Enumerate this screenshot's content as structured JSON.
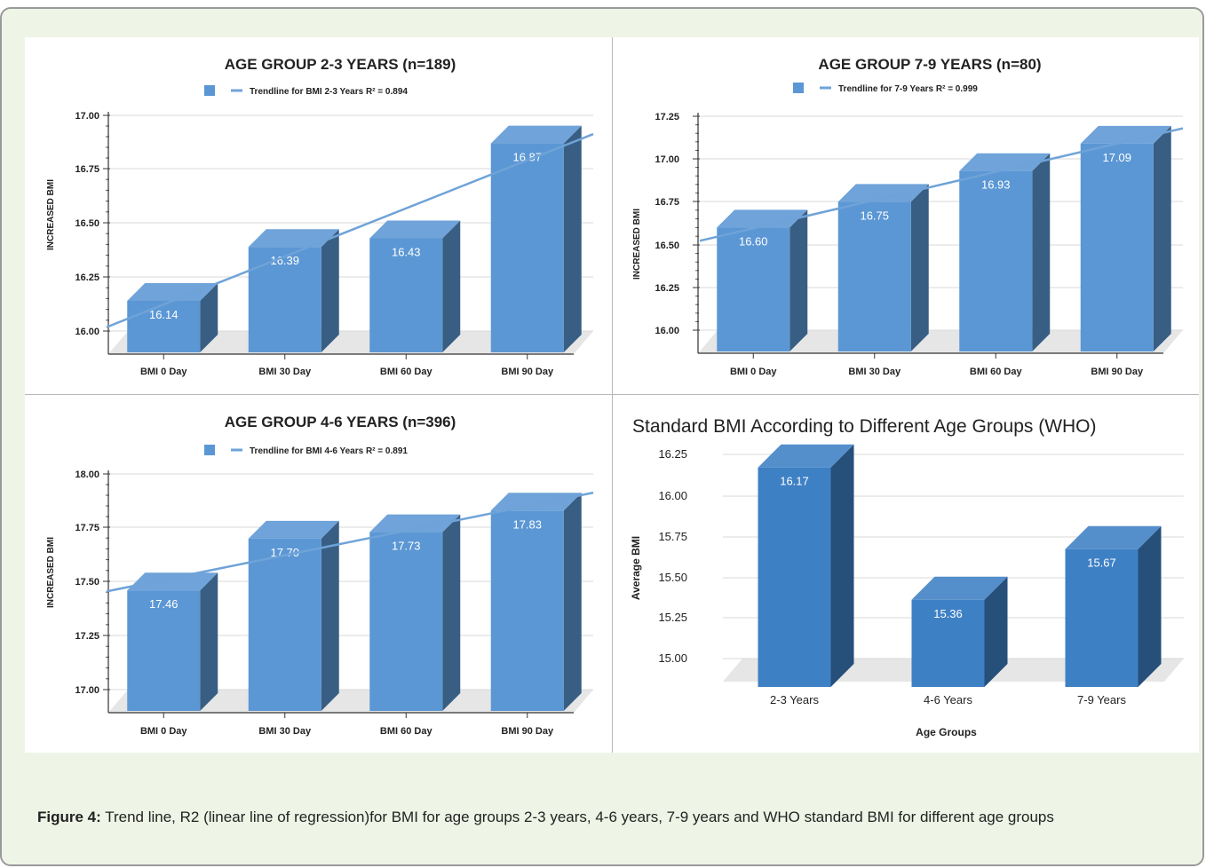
{
  "caption": {
    "label": "Figure 4:",
    "text": " Trend line, R2 (linear line of regression)for BMI for age groups 2-3 years, 4-6 years, 7-9 years and WHO standard BMI for different age groups"
  },
  "chart_data": [
    {
      "type": "bar",
      "title": "AGE GROUP 2-3 YEARS (n=189)",
      "legend": "Trendline for BMI 2-3 Years R² = 0.894",
      "ylabel": "INCREASED BMI",
      "xlabel": "",
      "categories": [
        "BMI 0 Day",
        "BMI 30 Day",
        "BMI 60 Day",
        "BMI 90 Day"
      ],
      "values": [
        16.14,
        16.39,
        16.43,
        16.87
      ],
      "value_labels": [
        "16.14",
        "16.39",
        "16.43",
        "16.87"
      ],
      "yticks": [
        "16.00",
        "16.25",
        "16.50",
        "16.75",
        "17.00"
      ],
      "ylim": [
        16.0,
        17.0
      ],
      "trendline": true,
      "bar_color": "#5b97d4",
      "trend_color": "#6fa3d8"
    },
    {
      "type": "bar",
      "title": "AGE GROUP 7-9 YEARS (n=80)",
      "legend": "Trendline for 7-9 Years R² = 0.999",
      "ylabel": "INCREASED BMI",
      "xlabel": "",
      "categories": [
        "BMI 0 Day",
        "BMI 30 Day",
        "BMI 60 Day",
        "BMI 90 Day"
      ],
      "values": [
        16.6,
        16.75,
        16.93,
        17.09
      ],
      "value_labels": [
        "16.60",
        "16.75",
        "16.93",
        "17.09"
      ],
      "yticks": [
        "16.00",
        "16.25",
        "16.50",
        "16.75",
        "17.00",
        "17.25"
      ],
      "ylim": [
        16.0,
        17.25
      ],
      "trendline": true,
      "bar_color": "#5b97d4",
      "trend_color": "#6fa3d8"
    },
    {
      "type": "bar",
      "title": "AGE GROUP 4-6 YEARS (n=396)",
      "legend": "Trendline for BMI 4-6 Years R² = 0.891",
      "ylabel": "INCREASED BMI",
      "xlabel": "",
      "categories": [
        "BMI 0 Day",
        "BMI 30 Day",
        "BMI 60 Day",
        "BMI 90 Day"
      ],
      "values": [
        17.46,
        17.7,
        17.73,
        17.83
      ],
      "value_labels": [
        "17.46",
        "17.70",
        "17.73",
        "17.83"
      ],
      "yticks": [
        "17.00",
        "17.25",
        "17.50",
        "17.75",
        "18.00"
      ],
      "ylim": [
        17.0,
        18.0
      ],
      "trendline": true,
      "bar_color": "#5b97d4",
      "trend_color": "#6fa3d8"
    },
    {
      "type": "bar",
      "title": "Standard BMI According to Different Age Groups (WHO)",
      "legend": "",
      "ylabel": "Average BMI",
      "xlabel": "Age Groups",
      "categories": [
        "2-3 Years",
        "4-6 Years",
        "7-9 Years"
      ],
      "values": [
        16.17,
        15.36,
        15.67
      ],
      "value_labels": [
        "16.17",
        "15.36",
        "15.67"
      ],
      "yticks": [
        "15.00",
        "15.25",
        "15.50",
        "15.75",
        "16.00",
        "16.25"
      ],
      "ylim": [
        15.0,
        16.25
      ],
      "trendline": false,
      "bar_color": "#3e80c4",
      "trend_color": ""
    }
  ]
}
